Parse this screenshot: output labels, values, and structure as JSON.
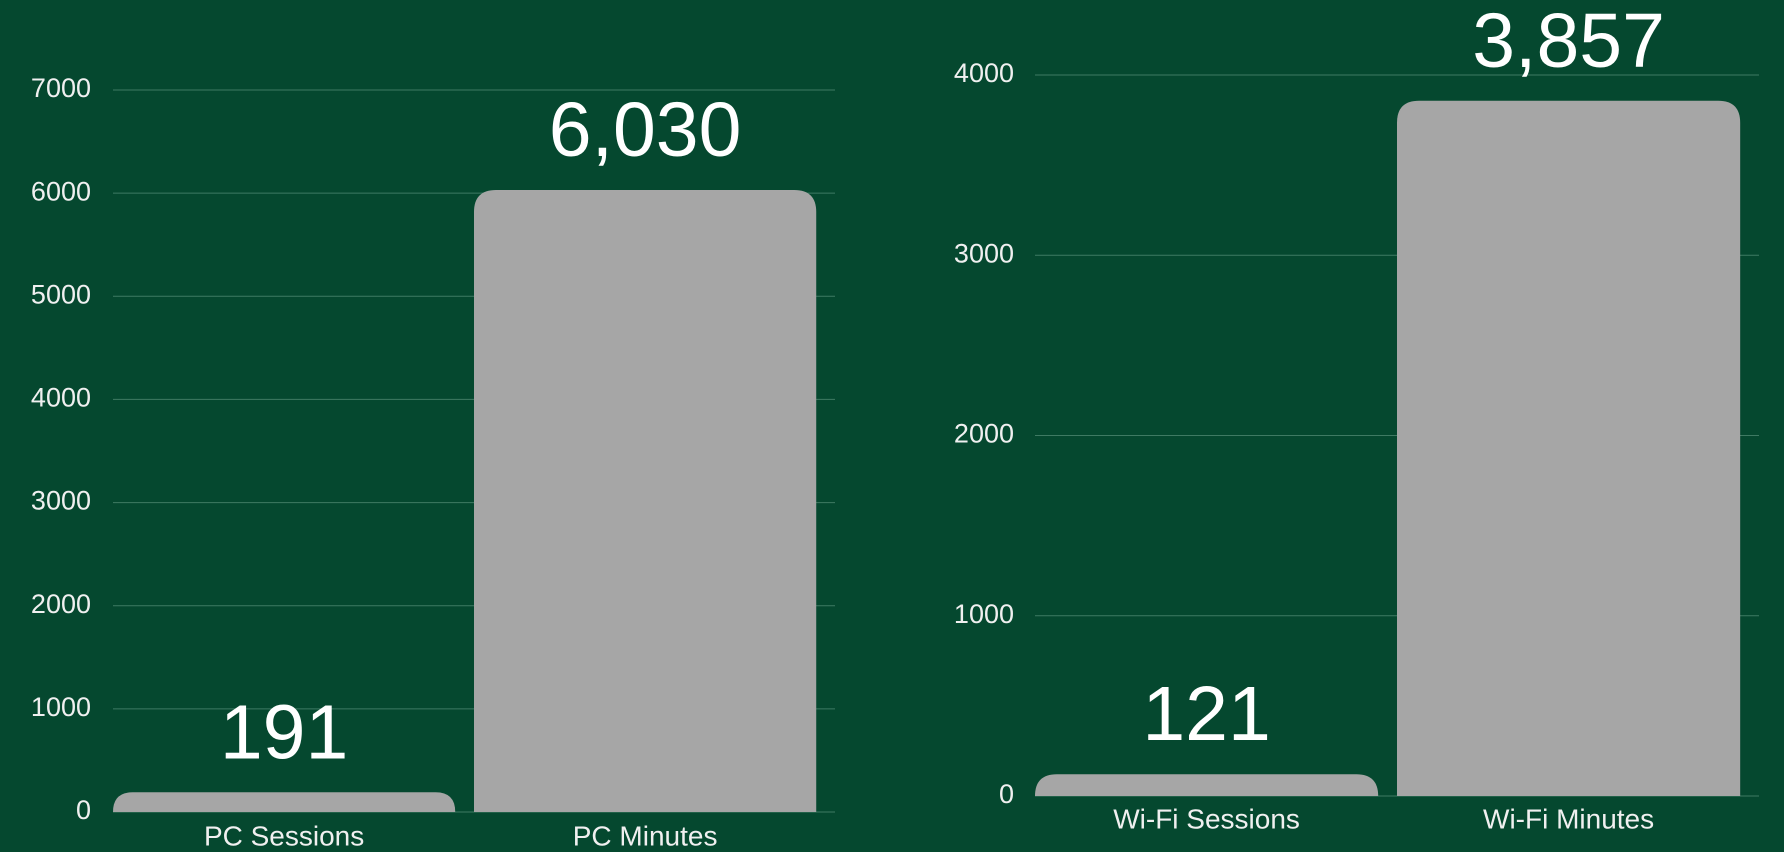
{
  "chart_data": [
    {
      "type": "bar",
      "categories": [
        "PC Sessions",
        "PC Minutes"
      ],
      "values": [
        191,
        6030
      ],
      "value_labels": [
        "191",
        "6,030"
      ],
      "color": "#a6a6a6",
      "ylim": [
        0,
        7000
      ],
      "yticks": [
        0,
        1000,
        2000,
        3000,
        4000,
        5000,
        6000,
        7000
      ],
      "grid": true
    },
    {
      "type": "bar",
      "categories": [
        "Wi-Fi Sessions",
        "Wi-Fi Minutes"
      ],
      "values": [
        121,
        3857
      ],
      "value_labels": [
        "121",
        "3,857"
      ],
      "color": "#a6a6a6",
      "ylim": [
        0,
        4000
      ],
      "yticks": [
        0,
        1000,
        2000,
        3000,
        4000
      ],
      "grid": true
    }
  ]
}
